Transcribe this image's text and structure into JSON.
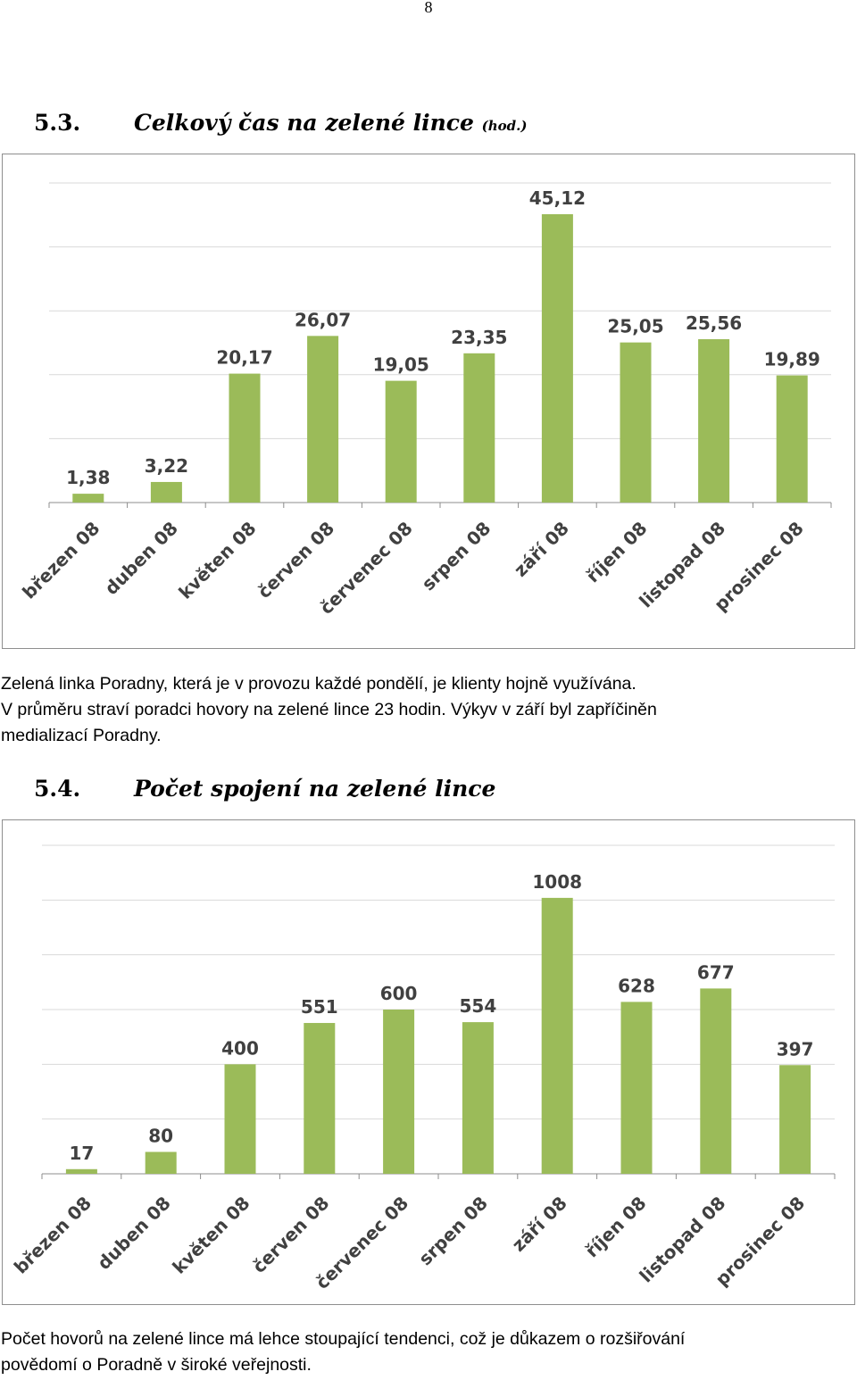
{
  "page": {
    "number": "8"
  },
  "section_53": {
    "number": "5.3.",
    "title": "Celkový čas na zelené lince",
    "unit": "(hod.)"
  },
  "paragraph_1": {
    "lines": [
      "Zelená linka Poradny, která je v provozu každé pondělí, je klienty hojně využívána.",
      "V průměru straví poradci hovory na zelené lince 23 hodin. Výkyv v září byl zapříčiněn",
      "medializací Poradny."
    ]
  },
  "section_54": {
    "number": "5.4.",
    "title": "Počet spojení na zelené lince"
  },
  "paragraph_2": {
    "lines": [
      "Počet hovorů na zelené lince má lehce stoupající tendenci, což je důkazem o rozšiřování",
      "povědomí o Poradně v široké veřejnosti."
    ]
  },
  "chart_data": [
    {
      "type": "bar",
      "categories": [
        "březen 08",
        "duben 08",
        "květen 08",
        "červen 08",
        "červenec 08",
        "srpen 08",
        "září 08",
        "říjen 08",
        "listopad 08",
        "prosinec 08"
      ],
      "values": [
        1.38,
        3.22,
        20.17,
        26.07,
        19.05,
        23.35,
        45.12,
        25.05,
        25.56,
        19.89
      ],
      "data_labels": [
        "1,38",
        "3,22",
        "20,17",
        "26,07",
        "19,05",
        "23,35",
        "45,12",
        "25,05",
        "25,56",
        "19,89"
      ],
      "ylim": [
        0,
        50
      ],
      "grid": true,
      "bar_color": "#9bbb59"
    },
    {
      "type": "bar",
      "categories": [
        "březen 08",
        "duben 08",
        "květen 08",
        "červen 08",
        "červenec 08",
        "srpen 08",
        "září 08",
        "říjen 08",
        "listopad 08",
        "prosinec 08"
      ],
      "values": [
        17,
        80,
        400,
        551,
        600,
        554,
        1008,
        628,
        677,
        397
      ],
      "data_labels": [
        "17",
        "80",
        "400",
        "551",
        "600",
        "554",
        "1008",
        "628",
        "677",
        "397"
      ],
      "ylim": [
        0,
        1200
      ],
      "grid": true,
      "bar_color": "#9bbb59"
    }
  ]
}
